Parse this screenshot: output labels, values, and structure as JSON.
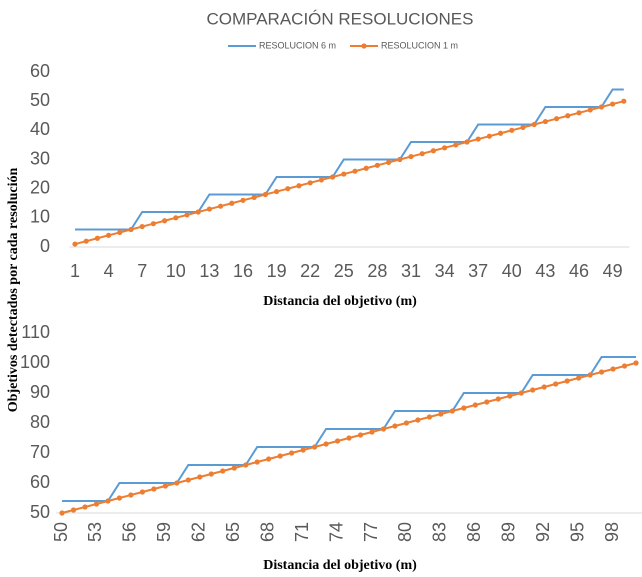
{
  "chart_data": [
    {
      "type": "line",
      "title": "COMPARACIÓN RESOLUCIONES",
      "ylabel": "Objetivos detectados por cada resolución",
      "xlabel": "Distancia del objetivo (m)",
      "categories": [
        "1",
        null,
        null,
        "4",
        null,
        null,
        "7",
        null,
        null,
        "10",
        null,
        null,
        "13",
        null,
        null,
        "16",
        null,
        null,
        "19",
        null,
        null,
        "22",
        null,
        null,
        "25",
        null,
        null,
        "28",
        null,
        null,
        "31",
        null,
        null,
        "34",
        null,
        null,
        "37",
        null,
        null,
        "40",
        null,
        null,
        "43",
        null,
        null,
        "46",
        null,
        null,
        "49",
        null
      ],
      "ylim": [
        0,
        60
      ],
      "yticks": [
        0,
        10,
        20,
        30,
        40,
        50,
        60
      ],
      "legend": "top",
      "series": [
        {
          "name": "RESOLUCION 6 m",
          "color": "#5b9bd5",
          "values": [
            6,
            6,
            6,
            6,
            6,
            6,
            12,
            12,
            12,
            12,
            12,
            12,
            18,
            18,
            18,
            18,
            18,
            18,
            24,
            24,
            24,
            24,
            24,
            24,
            30,
            30,
            30,
            30,
            30,
            30,
            36,
            36,
            36,
            36,
            36,
            36,
            42,
            42,
            42,
            42,
            42,
            42,
            48,
            48,
            48,
            48,
            48,
            48,
            54,
            54
          ]
        },
        {
          "name": "RESOLUCION 1 m",
          "color": "#ed7d31",
          "marker": "circle",
          "values": [
            1,
            2,
            3,
            4,
            5,
            6,
            7,
            8,
            9,
            10,
            11,
            12,
            13,
            14,
            15,
            16,
            17,
            18,
            19,
            20,
            21,
            22,
            23,
            24,
            25,
            26,
            27,
            28,
            29,
            30,
            31,
            32,
            33,
            34,
            35,
            36,
            37,
            38,
            39,
            40,
            41,
            42,
            43,
            44,
            45,
            46,
            47,
            48,
            49,
            50
          ]
        }
      ]
    },
    {
      "type": "line",
      "xlabel": "Distancia del objetivo (m)",
      "categories": [
        "50",
        null,
        null,
        "53",
        null,
        null,
        "56",
        null,
        null,
        "59",
        null,
        null,
        "62",
        null,
        null,
        "65",
        null,
        null,
        "68",
        null,
        null,
        "71",
        null,
        null,
        "74",
        null,
        null,
        "77",
        null,
        null,
        "80",
        null,
        null,
        "83",
        null,
        null,
        "86",
        null,
        null,
        "89",
        null,
        null,
        "92",
        null,
        null,
        "95",
        null,
        null,
        "98",
        null,
        null
      ],
      "ylim": [
        50,
        110
      ],
      "yticks": [
        50,
        60,
        70,
        80,
        90,
        100,
        110
      ],
      "series": [
        {
          "color": "#5b9bd5",
          "values": [
            54,
            54,
            54,
            54,
            54,
            60,
            60,
            60,
            60,
            60,
            60,
            66,
            66,
            66,
            66,
            66,
            66,
            72,
            72,
            72,
            72,
            72,
            72,
            78,
            78,
            78,
            78,
            78,
            78,
            84,
            84,
            84,
            84,
            84,
            84,
            90,
            90,
            90,
            90,
            90,
            90,
            96,
            96,
            96,
            96,
            96,
            96,
            102,
            102,
            102,
            102
          ]
        },
        {
          "color": "#ed7d31",
          "marker": "circle",
          "values": [
            50,
            51,
            52,
            53,
            54,
            55,
            56,
            57,
            58,
            59,
            60,
            61,
            62,
            63,
            64,
            65,
            66,
            67,
            68,
            69,
            70,
            71,
            72,
            73,
            74,
            75,
            76,
            77,
            78,
            79,
            80,
            81,
            82,
            83,
            84,
            85,
            86,
            87,
            88,
            89,
            90,
            91,
            92,
            93,
            94,
            95,
            96,
            97,
            98,
            99,
            100
          ]
        }
      ]
    }
  ]
}
